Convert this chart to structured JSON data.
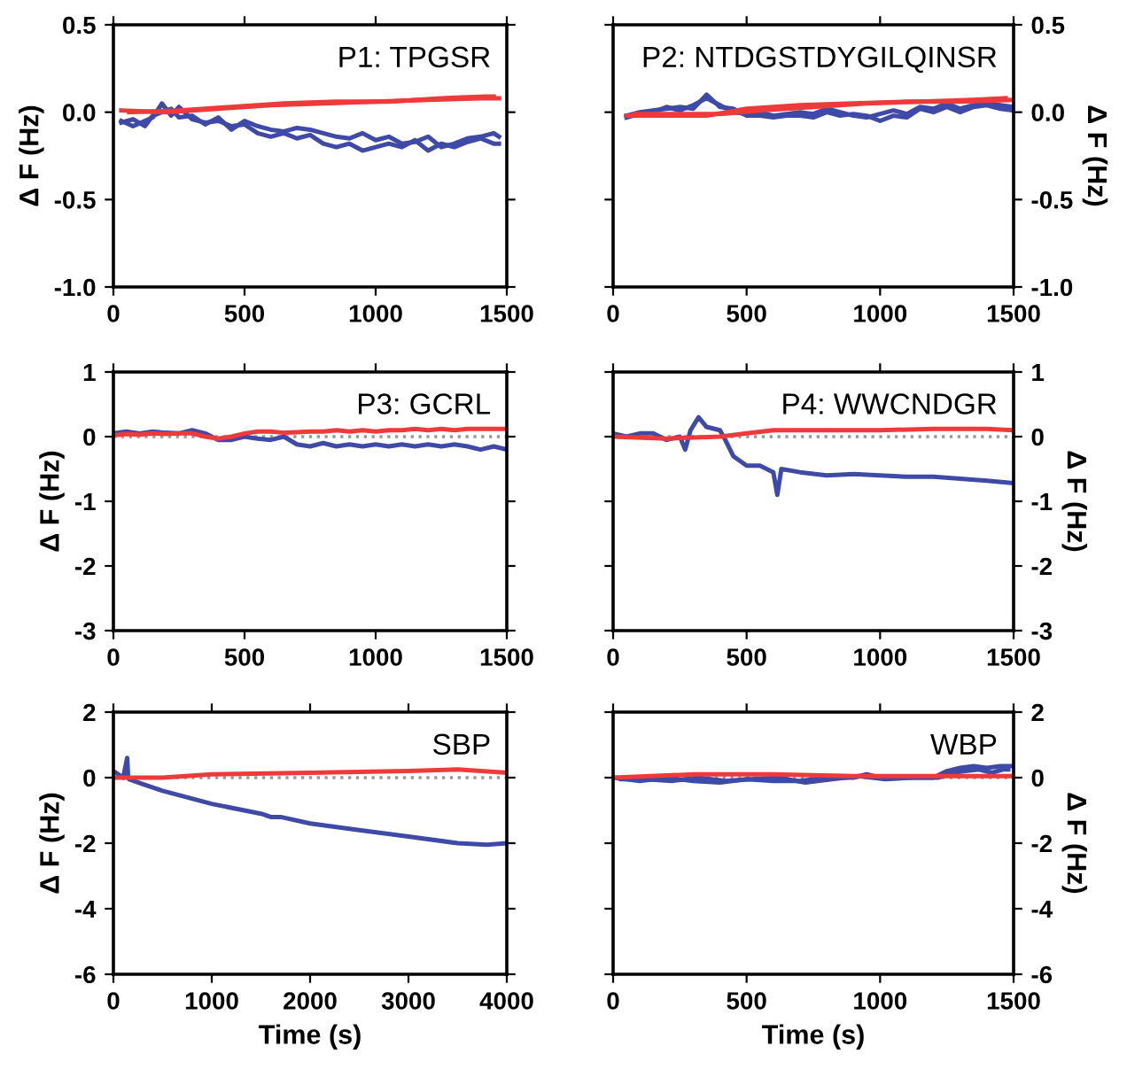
{
  "chart_data": [
    {
      "type": "line",
      "title": "P1: TPGSR",
      "ylabel": "Δ F (Hz)",
      "xlim": [
        0,
        1500
      ],
      "xticks": [
        0,
        500,
        1000,
        1500
      ],
      "ylim": [
        -1.0,
        0.5
      ],
      "yticks": [
        {
          "value": -1.0,
          "label": "-1.0"
        },
        {
          "value": -0.5,
          "label": "-0.5"
        },
        {
          "value": 0.0,
          "label": "0.0"
        },
        {
          "value": 0.5,
          "label": "0.5"
        }
      ],
      "grid": false,
      "legend": false,
      "marker": "none",
      "line_style": "solid",
      "series": [
        {
          "color": "#3f4aa8",
          "x": [
            30,
            75,
            120,
            150,
            185,
            220,
            250,
            300,
            350,
            400,
            450,
            500,
            550,
            600,
            650,
            700,
            750,
            800,
            850,
            900,
            950,
            1000,
            1050,
            1100,
            1150,
            1200,
            1250,
            1300,
            1350,
            1400,
            1450,
            1470
          ],
          "values": [
            -0.05,
            -0.08,
            -0.05,
            -0.03,
            0.05,
            -0.02,
            0.03,
            -0.04,
            -0.06,
            -0.05,
            -0.08,
            -0.07,
            -0.12,
            -0.14,
            -0.12,
            -0.15,
            -0.13,
            -0.18,
            -0.2,
            -0.18,
            -0.22,
            -0.2,
            -0.18,
            -0.2,
            -0.16,
            -0.22,
            -0.18,
            -0.2,
            -0.17,
            -0.15,
            -0.18,
            -0.18
          ]
        },
        {
          "color": "#3f4aa8",
          "x": [
            30,
            75,
            120,
            150,
            185,
            220,
            250,
            300,
            350,
            400,
            450,
            500,
            550,
            600,
            650,
            700,
            750,
            800,
            850,
            900,
            950,
            1000,
            1050,
            1100,
            1150,
            1200,
            1250,
            1300,
            1350,
            1400,
            1450,
            1470
          ],
          "values": [
            -0.06,
            -0.04,
            -0.08,
            -0.02,
            0.0,
            0.02,
            -0.03,
            -0.02,
            -0.07,
            -0.03,
            -0.1,
            -0.05,
            -0.08,
            -0.1,
            -0.11,
            -0.09,
            -0.1,
            -0.12,
            -0.14,
            -0.15,
            -0.12,
            -0.16,
            -0.14,
            -0.18,
            -0.17,
            -0.14,
            -0.2,
            -0.18,
            -0.15,
            -0.14,
            -0.12,
            -0.14
          ]
        },
        {
          "color": "#ee3a3a",
          "x": [
            30,
            200,
            400,
            600,
            800,
            1000,
            1200,
            1400,
            1470
          ],
          "values": [
            0.01,
            0.0,
            0.02,
            0.04,
            0.05,
            0.06,
            0.07,
            0.08,
            0.08
          ]
        },
        {
          "color": "#ee3a3a",
          "x": [
            60,
            250,
            450,
            650,
            850,
            1050,
            1250,
            1420,
            1450
          ],
          "values": [
            0.0,
            0.01,
            0.03,
            0.05,
            0.06,
            0.06,
            0.08,
            0.09,
            0.09
          ]
        }
      ]
    },
    {
      "type": "line",
      "title": "P2: NTDGSTDYGILQINSR",
      "y2label": "Δ F (Hz)",
      "xlim": [
        0,
        1500
      ],
      "xticks": [
        0,
        500,
        1000,
        1500
      ],
      "y2lim": [
        -1.0,
        0.5
      ],
      "y2ticks": [
        {
          "value": -1.0,
          "label": "-1.0"
        },
        {
          "value": -0.5,
          "label": "-0.5"
        },
        {
          "value": 0.0,
          "label": "0.0"
        },
        {
          "value": 0.5,
          "label": "0.5"
        }
      ],
      "grid": false,
      "legend": false,
      "marker": "none",
      "line_style": "solid",
      "series": [
        {
          "axis": "y2",
          "color": "#3f4aa8",
          "x": [
            50,
            100,
            150,
            200,
            250,
            300,
            350,
            400,
            450,
            500,
            550,
            600,
            650,
            700,
            750,
            800,
            850,
            900,
            950,
            1000,
            1050,
            1100,
            1150,
            1200,
            1250,
            1300,
            1350,
            1400,
            1450,
            1500
          ],
          "values": [
            -0.02,
            0.0,
            0.01,
            0.02,
            0.03,
            0.02,
            0.1,
            0.03,
            0.02,
            -0.02,
            -0.02,
            -0.03,
            -0.02,
            -0.02,
            -0.03,
            0.0,
            -0.02,
            -0.01,
            -0.02,
            -0.05,
            -0.02,
            -0.03,
            0.02,
            0.0,
            0.03,
            0.0,
            0.03,
            0.04,
            0.02,
            0.01
          ]
        },
        {
          "axis": "y2",
          "color": "#3f4aa8",
          "x": [
            50,
            100,
            150,
            200,
            250,
            300,
            350,
            400,
            450,
            500,
            550,
            600,
            650,
            700,
            750,
            800,
            850,
            900,
            950,
            1000,
            1050,
            1100,
            1150,
            1200,
            1250,
            1300,
            1350,
            1400,
            1450,
            1500
          ],
          "values": [
            -0.03,
            -0.01,
            0.0,
            0.03,
            0.01,
            0.04,
            0.08,
            0.04,
            0.0,
            -0.01,
            0.0,
            -0.02,
            -0.01,
            0.0,
            -0.01,
            0.02,
            0.0,
            -0.02,
            -0.03,
            -0.01,
            0.01,
            -0.01,
            0.03,
            0.02,
            0.05,
            0.02,
            0.04,
            0.05,
            0.04,
            0.03
          ]
        },
        {
          "axis": "y2",
          "color": "#ee3a3a",
          "x": [
            50,
            200,
            350,
            500,
            700,
            900,
            1100,
            1300,
            1500
          ],
          "values": [
            -0.02,
            -0.02,
            -0.02,
            0.02,
            0.04,
            0.05,
            0.06,
            0.06,
            0.07
          ]
        },
        {
          "axis": "y2",
          "color": "#ee3a3a",
          "x": [
            80,
            250,
            400,
            550,
            750,
            950,
            1150,
            1350,
            1470
          ],
          "values": [
            -0.01,
            -0.01,
            -0.01,
            0.01,
            0.03,
            0.05,
            0.06,
            0.07,
            0.08
          ]
        }
      ]
    },
    {
      "type": "line",
      "title": "P3: GCRL",
      "ylabel": "Δ F (Hz)",
      "xlim": [
        0,
        1500
      ],
      "xticks": [
        0,
        500,
        1000,
        1500
      ],
      "ylim": [
        -3,
        1
      ],
      "yticks": [
        -3,
        -2,
        -1,
        0,
        1
      ],
      "grid": false,
      "legend": false,
      "marker": "none",
      "line_style": "solid",
      "ref_lines": [
        {
          "axis": "y",
          "value": 0,
          "color": "#999999",
          "line_style": "dotted"
        }
      ],
      "series": [
        {
          "color": "#3f4aa8",
          "x": [
            0,
            50,
            100,
            150,
            200,
            250,
            300,
            350,
            400,
            450,
            500,
            550,
            600,
            650,
            700,
            750,
            800,
            850,
            900,
            950,
            1000,
            1050,
            1100,
            1150,
            1200,
            1250,
            1300,
            1350,
            1400,
            1450,
            1500
          ],
          "values": [
            0.05,
            0.08,
            0.05,
            0.08,
            0.06,
            0.05,
            0.1,
            0.05,
            -0.05,
            -0.05,
            0.0,
            -0.03,
            -0.05,
            0.0,
            -0.12,
            -0.15,
            -0.1,
            -0.15,
            -0.12,
            -0.15,
            -0.12,
            -0.15,
            -0.12,
            -0.15,
            -0.12,
            -0.15,
            -0.12,
            -0.15,
            -0.2,
            -0.15,
            -0.2
          ]
        },
        {
          "color": "#ee3a3a",
          "x": [
            0,
            50,
            100,
            150,
            200,
            250,
            300,
            350,
            400,
            450,
            500,
            550,
            600,
            650,
            700,
            750,
            800,
            850,
            900,
            950,
            1000,
            1050,
            1100,
            1150,
            1200,
            1250,
            1300,
            1350,
            1400,
            1450,
            1500
          ],
          "values": [
            0.02,
            0.04,
            0.03,
            0.05,
            0.04,
            0.05,
            0.05,
            0.0,
            -0.03,
            0.0,
            0.05,
            0.08,
            0.08,
            0.06,
            0.07,
            0.08,
            0.08,
            0.1,
            0.08,
            0.1,
            0.08,
            0.1,
            0.1,
            0.12,
            0.1,
            0.12,
            0.1,
            0.12,
            0.12,
            0.12,
            0.12
          ]
        }
      ]
    },
    {
      "type": "line",
      "title": "P4: WWCNDGR",
      "y2label": "Δ F (Hz)",
      "xlim": [
        0,
        1500
      ],
      "xticks": [
        0,
        500,
        1000,
        1500
      ],
      "y2lim": [
        -3,
        1
      ],
      "y2ticks": [
        -3,
        -2,
        -1,
        0,
        1
      ],
      "grid": false,
      "legend": false,
      "marker": "none",
      "line_style": "solid",
      "ref_lines": [
        {
          "axis": "y2",
          "value": 0,
          "color": "#999999",
          "line_style": "dotted"
        }
      ],
      "series": [
        {
          "axis": "y2",
          "color": "#3f4aa8",
          "x": [
            0,
            50,
            100,
            150,
            200,
            250,
            270,
            290,
            320,
            350,
            400,
            420,
            450,
            500,
            550,
            600,
            615,
            630,
            700,
            800,
            900,
            1000,
            1100,
            1200,
            1300,
            1400,
            1500
          ],
          "values": [
            0.05,
            0.0,
            0.05,
            0.05,
            -0.05,
            0.0,
            -0.2,
            0.1,
            0.3,
            0.15,
            0.1,
            -0.05,
            -0.3,
            -0.45,
            -0.45,
            -0.55,
            -0.9,
            -0.5,
            -0.55,
            -0.6,
            -0.58,
            -0.6,
            -0.62,
            -0.62,
            -0.65,
            -0.68,
            -0.72
          ]
        },
        {
          "axis": "y2",
          "color": "#ee3a3a",
          "x": [
            0,
            200,
            400,
            500,
            600,
            800,
            1000,
            1200,
            1400,
            1500
          ],
          "values": [
            0.0,
            -0.03,
            0.0,
            0.05,
            0.1,
            0.1,
            0.1,
            0.12,
            0.12,
            0.1
          ]
        }
      ]
    },
    {
      "type": "line",
      "title": "SBP",
      "xlabel": "Time (s)",
      "ylabel": "Δ F (Hz)",
      "xlim": [
        0,
        4000
      ],
      "xticks": [
        0,
        1000,
        2000,
        3000,
        4000
      ],
      "ylim": [
        -6,
        2
      ],
      "yticks": [
        -6,
        -4,
        -2,
        0,
        2
      ],
      "grid": false,
      "legend": false,
      "marker": "none",
      "line_style": "solid",
      "ref_lines": [
        {
          "axis": "y",
          "value": 0,
          "color": "#999999",
          "line_style": "dotted"
        }
      ],
      "series": [
        {
          "color": "#3f4aa8",
          "x": [
            0,
            100,
            140,
            150,
            160,
            300,
            500,
            1000,
            1500,
            1600,
            1700,
            2000,
            2500,
            3000,
            3500,
            3800,
            4000
          ],
          "values": [
            0.2,
            0.0,
            0.6,
            0.0,
            -0.05,
            -0.2,
            -0.4,
            -0.8,
            -1.1,
            -1.2,
            -1.2,
            -1.4,
            -1.6,
            -1.8,
            -2.0,
            -2.05,
            -2.0
          ]
        },
        {
          "color": "#ee3a3a",
          "x": [
            0,
            500,
            1000,
            2000,
            3000,
            3500,
            4000
          ],
          "values": [
            0.0,
            0.0,
            0.1,
            0.15,
            0.2,
            0.25,
            0.15
          ]
        }
      ]
    },
    {
      "type": "line",
      "title": "WBP",
      "xlabel": "Time (s)",
      "y2label": "Δ F (Hz)",
      "xlim": [
        0,
        1500
      ],
      "xticks": [
        0,
        500,
        1000,
        1500
      ],
      "y2lim": [
        -6,
        2
      ],
      "y2ticks": [
        -6,
        -4,
        -2,
        0,
        2
      ],
      "grid": false,
      "legend": false,
      "marker": "none",
      "line_style": "solid",
      "ref_lines": [
        {
          "axis": "y2",
          "value": 0,
          "color": "#999999",
          "line_style": "dotted"
        }
      ],
      "series": [
        {
          "axis": "y2",
          "color": "#3f4aa8",
          "x": [
            0,
            100,
            200,
            300,
            400,
            500,
            600,
            700,
            800,
            900,
            950,
            1000,
            1100,
            1200,
            1250,
            1300,
            1350,
            1400,
            1450,
            1500
          ],
          "values": [
            0.0,
            -0.1,
            0.0,
            -0.1,
            -0.15,
            -0.05,
            -0.1,
            -0.1,
            0.0,
            0.0,
            0.1,
            0.0,
            0.0,
            0.0,
            0.2,
            0.3,
            0.35,
            0.3,
            0.35,
            0.35
          ]
        },
        {
          "axis": "y2",
          "color": "#3f4aa8",
          "x": [
            30,
            120,
            220,
            320,
            420,
            520,
            620,
            720,
            820,
            920,
            970,
            1020,
            1120,
            1220,
            1270,
            1320,
            1370,
            1420,
            1460,
            1480
          ],
          "values": [
            -0.05,
            -0.05,
            -0.1,
            0.0,
            -0.1,
            -0.05,
            0.0,
            -0.15,
            -0.05,
            0.05,
            0.0,
            -0.05,
            0.0,
            0.0,
            0.15,
            0.2,
            0.25,
            0.15,
            0.25,
            0.25
          ]
        },
        {
          "axis": "y2",
          "color": "#ee3a3a",
          "x": [
            0,
            300,
            600,
            900,
            1200,
            1500
          ],
          "values": [
            0.0,
            0.1,
            0.1,
            0.05,
            0.05,
            0.05
          ]
        }
      ]
    }
  ]
}
